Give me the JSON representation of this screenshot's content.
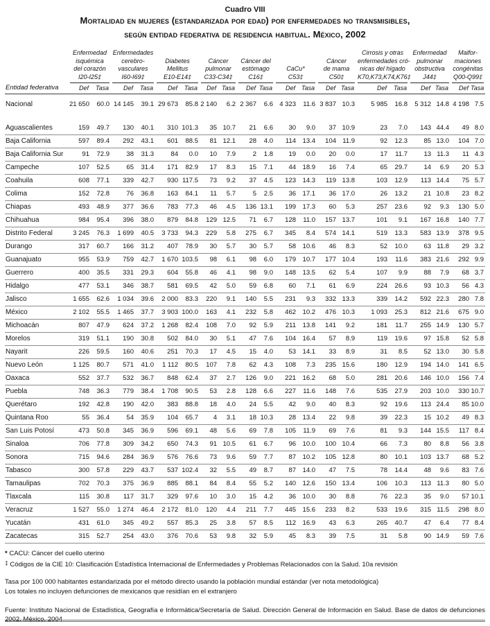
{
  "title": {
    "label": "Cuadro VIII",
    "line1": "Mortalidad en mujeres (estandarizada por edad) por enfermedades no transmisibles,",
    "line2": "según entidad federativa de residencia habitual. México, 2002"
  },
  "table": {
    "row_header_label": "Entidad federativa",
    "def_label": "Def",
    "tasa_label": "Tasa",
    "columns": [
      {
        "name_lines": [
          "Enfermedad",
          "isquémica",
          "del corazón"
        ],
        "code": "I20-I25‡"
      },
      {
        "name_lines": [
          "Enfermedades",
          "cerebro-",
          "vasculares"
        ],
        "code": "I60-I69‡"
      },
      {
        "name_lines": [
          "Diabetes",
          "Mellitus"
        ],
        "code": "E10-E14‡"
      },
      {
        "name_lines": [
          "Cáncer",
          "pulmonar"
        ],
        "code": "C33-C34‡"
      },
      {
        "name_lines": [
          "Cáncer del",
          "estómago"
        ],
        "code": "C16‡"
      },
      {
        "name_lines": [
          "CaCu*"
        ],
        "code": "C53‡"
      },
      {
        "name_lines": [
          "Cáncer",
          "de mama"
        ],
        "code": "C50‡"
      },
      {
        "name_lines": [
          "Cirrosis y otras",
          "enfermedades cró-",
          "nicas del hígado"
        ],
        "code": "K70,K73,K74,K76‡"
      },
      {
        "name_lines": [
          "Enfermedad",
          "pulmonar",
          "obstructiva"
        ],
        "code": "J44‡"
      },
      {
        "name_lines": [
          "Malfor-",
          "maciones",
          "congénitas"
        ],
        "code": "Q00-Q99‡"
      }
    ],
    "national": {
      "name": "Nacional",
      "values": [
        "21 650",
        "60.0",
        "14 145",
        "39.1",
        "29 673",
        "85.8",
        "2 140",
        "6.2",
        "2 367",
        "6.6",
        "4 323",
        "11.6",
        "3 837",
        "10.3",
        "5 985",
        "16.8",
        "5 312",
        "14.8",
        "4 198",
        "7.5"
      ]
    },
    "rows": [
      {
        "name": "Aguascalientes",
        "values": [
          "159",
          "49.7",
          "130",
          "40.1",
          "310",
          "101.3",
          "35",
          "10.7",
          "21",
          "6.6",
          "30",
          "9.0",
          "37",
          "10.9",
          "23",
          "7.0",
          "143",
          "44.4",
          "49",
          "8.0"
        ]
      },
      {
        "name": "Baja California",
        "values": [
          "597",
          "89.4",
          "292",
          "43.1",
          "601",
          "88.5",
          "81",
          "12.1",
          "28",
          "4.0",
          "114",
          "13.4",
          "104",
          "11.9",
          "92",
          "12.3",
          "85",
          "13.0",
          "104",
          "7.0"
        ]
      },
      {
        "name": "Baja California Sur",
        "values": [
          "91",
          "72.9",
          "38",
          "31.3",
          "84",
          "0.0",
          "10",
          "7.9",
          "2",
          "1.8",
          "19",
          "0.0",
          "20",
          "0.0",
          "17",
          "11.7",
          "13",
          "11.3",
          "11",
          "4.3"
        ]
      },
      {
        "name": "Campeche",
        "values": [
          "107",
          "52.5",
          "65",
          "31.4",
          "171",
          "82.9",
          "17",
          "8.3",
          "15",
          "7.1",
          "44",
          "18.9",
          "16",
          "7.4",
          "65",
          "29.7",
          "14",
          "6.9",
          "20",
          "5.3"
        ]
      },
      {
        "name": "Coahuila",
        "values": [
          "608",
          "77.1",
          "339",
          "42.7",
          "930",
          "117.5",
          "73",
          "9.2",
          "37",
          "4.5",
          "123",
          "14.3",
          "119",
          "13.8",
          "103",
          "12.9",
          "113",
          "14.4",
          "75",
          "5.7"
        ]
      },
      {
        "name": "Colima",
        "values": [
          "152",
          "72.8",
          "76",
          "36.8",
          "163",
          "84.1",
          "11",
          "5.7",
          "5",
          "2.5",
          "36",
          "17.1",
          "36",
          "17.0",
          "26",
          "13.2",
          "21",
          "10.8",
          "23",
          "8.2"
        ]
      },
      {
        "name": "Chiapas",
        "values": [
          "493",
          "48.9",
          "377",
          "36.6",
          "783",
          "77.3",
          "46",
          "4.5",
          "136",
          "13.1",
          "199",
          "17.3",
          "60",
          "5.3",
          "257",
          "23.6",
          "92",
          "9.3",
          "130",
          "5.0"
        ]
      },
      {
        "name": "Chihuahua",
        "values": [
          "984",
          "95.4",
          "396",
          "38.0",
          "879",
          "84.8",
          "129",
          "12.5",
          "71",
          "6.7",
          "128",
          "11.0",
          "157",
          "13.7",
          "101",
          "9.1",
          "167",
          "16.8",
          "140",
          "7.7"
        ]
      },
      {
        "name": "Distrito Federal",
        "values": [
          "3 245",
          "76.3",
          "1 699",
          "40.5",
          "3 733",
          "94.3",
          "229",
          "5.8",
          "275",
          "6.7",
          "345",
          "8.4",
          "574",
          "14.1",
          "519",
          "13.3",
          "583",
          "13.9",
          "378",
          "9.5"
        ]
      },
      {
        "name": "Durango",
        "values": [
          "317",
          "60.7",
          "166",
          "31.2",
          "407",
          "78.9",
          "30",
          "5.7",
          "30",
          "5.7",
          "58",
          "10.6",
          "46",
          "8.3",
          "52",
          "10.0",
          "63",
          "11.8",
          "29",
          "3.2"
        ]
      },
      {
        "name": "Guanajuato",
        "values": [
          "955",
          "53.9",
          "759",
          "42.7",
          "1 670",
          "103.5",
          "98",
          "6.1",
          "98",
          "6.0",
          "179",
          "10.7",
          "177",
          "10.4",
          "193",
          "11.6",
          "383",
          "21.6",
          "292",
          "9.9"
        ]
      },
      {
        "name": "Guerrero",
        "values": [
          "400",
          "35.5",
          "331",
          "29.3",
          "604",
          "55.8",
          "46",
          "4.1",
          "98",
          "9.0",
          "148",
          "13.5",
          "62",
          "5.4",
          "107",
          "9.9",
          "88",
          "7.9",
          "68",
          "3.7"
        ]
      },
      {
        "name": "Hidalgo",
        "values": [
          "477",
          "53.1",
          "346",
          "38.7",
          "581",
          "69.5",
          "42",
          "5.0",
          "59",
          "6.8",
          "60",
          "7.1",
          "61",
          "6.9",
          "224",
          "26.6",
          "93",
          "10.3",
          "56",
          "4.3"
        ]
      },
      {
        "name": "Jalisco",
        "values": [
          "1 655",
          "62.6",
          "1 034",
          "39.6",
          "2 000",
          "83.3",
          "220",
          "9.1",
          "140",
          "5.5",
          "231",
          "9.3",
          "332",
          "13.3",
          "339",
          "14.2",
          "592",
          "22.3",
          "280",
          "7.8"
        ]
      },
      {
        "name": "México",
        "values": [
          "2 102",
          "55.5",
          "1 465",
          "37.7",
          "3 903",
          "100.0",
          "163",
          "4.1",
          "232",
          "5.8",
          "462",
          "10.2",
          "476",
          "10.3",
          "1 093",
          "25.3",
          "812",
          "21.6",
          "675",
          "9.0"
        ]
      },
      {
        "name": "Michoacán",
        "values": [
          "807",
          "47.9",
          "624",
          "37.2",
          "1 268",
          "82.4",
          "108",
          "7.0",
          "92",
          "5.9",
          "211",
          "13.8",
          "141",
          "9.2",
          "181",
          "11.7",
          "255",
          "14.9",
          "130",
          "5.7"
        ]
      },
      {
        "name": "Morelos",
        "values": [
          "319",
          "51.1",
          "190",
          "30.8",
          "502",
          "84.0",
          "30",
          "5.1",
          "47",
          "7.6",
          "104",
          "16.4",
          "57",
          "8.9",
          "119",
          "19.6",
          "97",
          "15.8",
          "52",
          "5.8"
        ]
      },
      {
        "name": "Nayarit",
        "values": [
          "226",
          "59.5",
          "160",
          "40.6",
          "251",
          "70.3",
          "17",
          "4.5",
          "15",
          "4.0",
          "53",
          "14.1",
          "33",
          "8.9",
          "31",
          "8.5",
          "52",
          "13.0",
          "30",
          "5.8"
        ]
      },
      {
        "name": "Nuevo León",
        "values": [
          "1 125",
          "80.7",
          "571",
          "41.0",
          "1 112",
          "80.5",
          "107",
          "7.8",
          "62",
          "4.3",
          "108",
          "7.3",
          "235",
          "15.6",
          "180",
          "12.9",
          "194",
          "14.0",
          "141",
          "6.5"
        ]
      },
      {
        "name": "Oaxaca",
        "values": [
          "552",
          "37.7",
          "532",
          "36.7",
          "848",
          "62.4",
          "37",
          "2.7",
          "126",
          "9.0",
          "221",
          "16.2",
          "68",
          "5.0",
          "281",
          "20.6",
          "146",
          "10.0",
          "156",
          "7.4"
        ]
      },
      {
        "name": "Puebla",
        "values": [
          "748",
          "36.3",
          "779",
          "38.4",
          "1 708",
          "90.5",
          "53",
          "2.8",
          "128",
          "6.6",
          "227",
          "11.6",
          "148",
          "7.6",
          "535",
          "27.9",
          "203",
          "10.0",
          "330",
          "10.7"
        ]
      },
      {
        "name": "Querétaro",
        "values": [
          "192",
          "42.8",
          "190",
          "42.0",
          "383",
          "88.8",
          "18",
          "4.0",
          "24",
          "5.5",
          "42",
          "9.0",
          "40",
          "8.3",
          "92",
          "19.6",
          "113",
          "24.4",
          "85",
          "10.0"
        ]
      },
      {
        "name": "Quintana Roo",
        "values": [
          "55",
          "36.4",
          "54",
          "35.9",
          "104",
          "65.7",
          "4",
          "3.1",
          "18",
          "10.3",
          "28",
          "13.4",
          "22",
          "9.8",
          "39",
          "22.3",
          "15",
          "10.2",
          "49",
          "8.3"
        ]
      },
      {
        "name": "San Luis Potosí",
        "values": [
          "473",
          "50.8",
          "345",
          "36.9",
          "596",
          "69.1",
          "48",
          "5.6",
          "69",
          "7.8",
          "105",
          "11.9",
          "69",
          "7.6",
          "81",
          "9.3",
          "144",
          "15.5",
          "117",
          "8.4"
        ]
      },
      {
        "name": "Sinaloa",
        "values": [
          "706",
          "77.8",
          "309",
          "34.2",
          "650",
          "74.3",
          "91",
          "10.5",
          "61",
          "6.7",
          "96",
          "10.0",
          "100",
          "10.4",
          "66",
          "7.3",
          "80",
          "8.8",
          "56",
          "3.8"
        ]
      },
      {
        "name": "Sonora",
        "values": [
          "715",
          "94.6",
          "284",
          "36.9",
          "576",
          "76.6",
          "73",
          "9.6",
          "59",
          "7.7",
          "87",
          "10.2",
          "105",
          "12.8",
          "80",
          "10.1",
          "103",
          "13.7",
          "68",
          "5.2"
        ]
      },
      {
        "name": "Tabasco",
        "values": [
          "300",
          "57.8",
          "229",
          "43.7",
          "537",
          "102.4",
          "32",
          "5.5",
          "49",
          "8.7",
          "87",
          "14.0",
          "47",
          "7.5",
          "78",
          "14.4",
          "48",
          "9.6",
          "83",
          "7.6"
        ]
      },
      {
        "name": "Tamaulipas",
        "values": [
          "702",
          "70.3",
          "375",
          "36.9",
          "885",
          "88.1",
          "84",
          "8.4",
          "55",
          "5.2",
          "140",
          "12.6",
          "150",
          "13.4",
          "106",
          "10.3",
          "113",
          "11.3",
          "80",
          "5.0"
        ]
      },
      {
        "name": "Tlaxcala",
        "values": [
          "115",
          "30.8",
          "117",
          "31.7",
          "329",
          "97.6",
          "10",
          "3.0",
          "15",
          "4.2",
          "36",
          "10.0",
          "30",
          "8.8",
          "76",
          "22.3",
          "35",
          "9.0",
          "57",
          "10.1"
        ]
      },
      {
        "name": "Veracruz",
        "values": [
          "1 527",
          "55.0",
          "1 274",
          "46.4",
          "2 172",
          "81.0",
          "120",
          "4.4",
          "211",
          "7.7",
          "445",
          "15.6",
          "233",
          "8.2",
          "533",
          "19.6",
          "315",
          "11.5",
          "298",
          "8.0"
        ]
      },
      {
        "name": "Yucatán",
        "values": [
          "431",
          "61.0",
          "345",
          "49.2",
          "557",
          "85.3",
          "25",
          "3.8",
          "57",
          "8.5",
          "112",
          "16.9",
          "43",
          "6.3",
          "265",
          "40.7",
          "47",
          "6.4",
          "77",
          "8.4"
        ]
      },
      {
        "name": "Zacatecas",
        "values": [
          "315",
          "52.7",
          "254",
          "43.0",
          "376",
          "70.6",
          "53",
          "9.8",
          "32",
          "5.9",
          "45",
          "8.3",
          "39",
          "7.5",
          "31",
          "5.8",
          "90",
          "14.9",
          "59",
          "7.6"
        ]
      }
    ]
  },
  "footnotes": {
    "cacu_marker": "*",
    "cacu_text": "CACU: Cáncer del cuello uterino",
    "cie_marker": "‡",
    "cie_text": "Códigos de la CIE 10: Clasificación Estadística Internacional de Enfermedades y Problemas Relacionados con la Salud. 10a revisión",
    "tasa_note": "Tasa por 100 000 habitantes estandarizada por el método directo usando la población mundial estándar (ver nota metodológica)",
    "totales_note": "Los totales no incluyen defunciones de mexicanos que residían en el extranjero",
    "fuente": "Fuente: Instituto Nacional de Estadística, Geografía e Informática/Secretaría de Salud. Dirección General de Información en Salud. Base de datos de defunciones 2002. México, 2004"
  }
}
